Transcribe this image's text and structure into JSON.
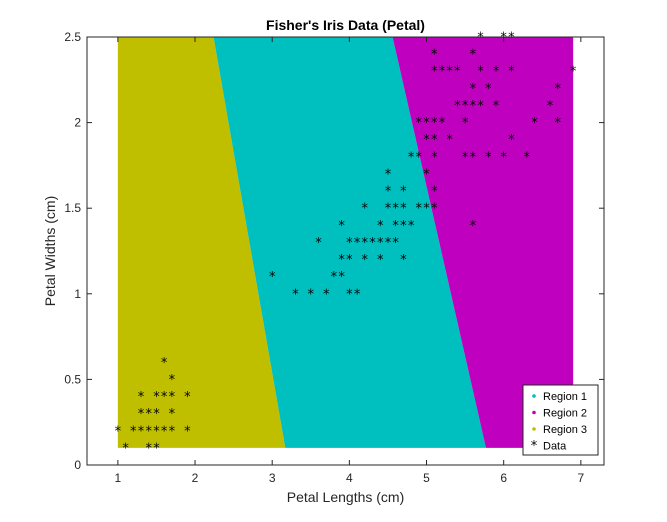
{
  "chart_data": {
    "type": "scatter",
    "title": "Fisher's Iris Data (Petal)",
    "xlabel": "Petal Lengths (cm)",
    "ylabel": "Petal Widths (cm)",
    "xlim": [
      0.6,
      7.3
    ],
    "ylim": [
      0,
      2.5
    ],
    "xticks": [
      "1",
      "2",
      "3",
      "4",
      "5",
      "6",
      "7"
    ],
    "yticks": [
      "0",
      "0.5",
      "1",
      "1.5",
      "2",
      "2.5"
    ],
    "regions_extent": {
      "x": [
        1,
        6.9
      ],
      "y": [
        0.1,
        2.5
      ]
    },
    "regions": [
      {
        "name": "Region 1",
        "color": "#00BFBF",
        "boundary_bottom_x": 3.17,
        "boundary_top_x": 2.24
      },
      {
        "name": "Region 2",
        "color": "#BF00BF",
        "boundary_bottom_x": 5.77,
        "boundary_top_x": 4.56
      },
      {
        "name": "Region 3",
        "color": "#BFBF00"
      }
    ],
    "data_series_name": "Data",
    "data_marker": "*",
    "points": [
      [
        1.0,
        0.2
      ],
      [
        1.1,
        0.1
      ],
      [
        1.2,
        0.2
      ],
      [
        1.3,
        0.2
      ],
      [
        1.4,
        0.2
      ],
      [
        1.5,
        0.2
      ],
      [
        1.6,
        0.2
      ],
      [
        1.7,
        0.2
      ],
      [
        1.9,
        0.2
      ],
      [
        1.4,
        0.1
      ],
      [
        1.5,
        0.1
      ],
      [
        1.3,
        0.3
      ],
      [
        1.4,
        0.3
      ],
      [
        1.5,
        0.3
      ],
      [
        1.7,
        0.3
      ],
      [
        1.3,
        0.4
      ],
      [
        1.5,
        0.4
      ],
      [
        1.6,
        0.4
      ],
      [
        1.7,
        0.4
      ],
      [
        1.9,
        0.4
      ],
      [
        1.7,
        0.5
      ],
      [
        1.6,
        0.6
      ],
      [
        3.0,
        1.1
      ],
      [
        3.3,
        1.0
      ],
      [
        3.5,
        1.0
      ],
      [
        3.7,
        1.0
      ],
      [
        4.0,
        1.0
      ],
      [
        4.1,
        1.0
      ],
      [
        3.8,
        1.1
      ],
      [
        3.9,
        1.1
      ],
      [
        3.6,
        1.3
      ],
      [
        3.9,
        1.2
      ],
      [
        4.0,
        1.2
      ],
      [
        4.2,
        1.2
      ],
      [
        4.4,
        1.2
      ],
      [
        4.7,
        1.2
      ],
      [
        4.0,
        1.3
      ],
      [
        4.1,
        1.3
      ],
      [
        4.2,
        1.3
      ],
      [
        4.3,
        1.3
      ],
      [
        4.4,
        1.3
      ],
      [
        4.5,
        1.3
      ],
      [
        4.6,
        1.3
      ],
      [
        3.9,
        1.4
      ],
      [
        4.4,
        1.4
      ],
      [
        4.6,
        1.4
      ],
      [
        4.7,
        1.4
      ],
      [
        4.8,
        1.4
      ],
      [
        4.2,
        1.5
      ],
      [
        4.5,
        1.5
      ],
      [
        4.6,
        1.5
      ],
      [
        4.7,
        1.5
      ],
      [
        4.9,
        1.5
      ],
      [
        5.0,
        1.5
      ],
      [
        5.1,
        1.5
      ],
      [
        4.5,
        1.6
      ],
      [
        4.7,
        1.6
      ],
      [
        5.1,
        1.6
      ],
      [
        4.5,
        1.7
      ],
      [
        5.0,
        1.7
      ],
      [
        4.8,
        1.8
      ],
      [
        4.9,
        1.8
      ],
      [
        5.1,
        1.8
      ],
      [
        5.5,
        1.8
      ],
      [
        5.6,
        1.8
      ],
      [
        5.8,
        1.8
      ],
      [
        6.0,
        1.8
      ],
      [
        6.3,
        1.8
      ],
      [
        5.0,
        1.9
      ],
      [
        5.1,
        1.9
      ],
      [
        5.3,
        1.9
      ],
      [
        6.1,
        1.9
      ],
      [
        4.9,
        2.0
      ],
      [
        5.0,
        2.0
      ],
      [
        5.1,
        2.0
      ],
      [
        5.2,
        2.0
      ],
      [
        5.5,
        2.0
      ],
      [
        6.4,
        2.0
      ],
      [
        6.7,
        2.0
      ],
      [
        5.4,
        2.1
      ],
      [
        5.5,
        2.1
      ],
      [
        5.6,
        2.1
      ],
      [
        5.7,
        2.1
      ],
      [
        5.9,
        2.1
      ],
      [
        6.6,
        2.1
      ],
      [
        5.6,
        2.2
      ],
      [
        5.8,
        2.2
      ],
      [
        6.7,
        2.2
      ],
      [
        5.1,
        2.3
      ],
      [
        5.2,
        2.3
      ],
      [
        5.3,
        2.3
      ],
      [
        5.4,
        2.3
      ],
      [
        5.7,
        2.3
      ],
      [
        5.9,
        2.3
      ],
      [
        6.1,
        2.3
      ],
      [
        6.9,
        2.3
      ],
      [
        5.1,
        2.4
      ],
      [
        5.6,
        2.4
      ],
      [
        5.7,
        2.5
      ],
      [
        6.0,
        2.5
      ],
      [
        6.1,
        2.5
      ],
      [
        5.6,
        1.4
      ]
    ],
    "legend": {
      "location": "bottom-right",
      "entries": [
        {
          "label": "Region 1",
          "marker": "dot",
          "color": "#00BFBF"
        },
        {
          "label": "Region 2",
          "marker": "dot",
          "color": "#BF00BF"
        },
        {
          "label": "Region 3",
          "marker": "dot",
          "color": "#BFBF00"
        },
        {
          "label": "Data",
          "marker": "*",
          "color": "#000000"
        }
      ]
    },
    "grid": false
  }
}
